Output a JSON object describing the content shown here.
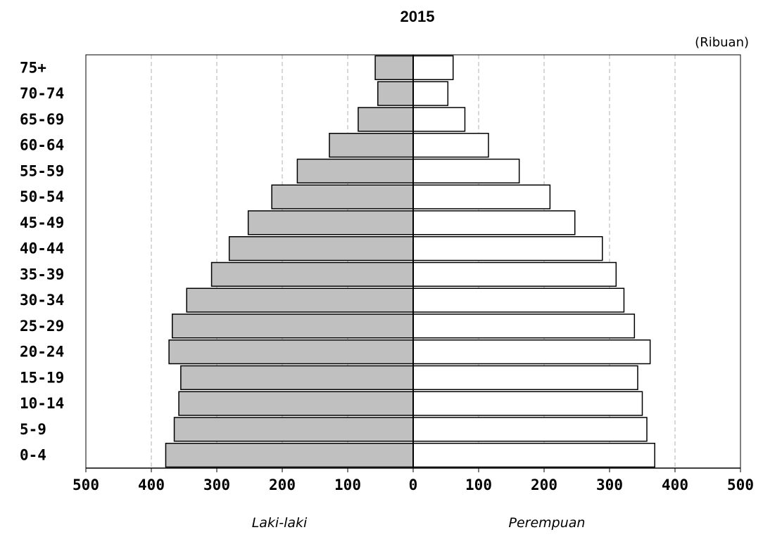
{
  "chart_data": {
    "type": "bar",
    "orientation": "horizontal",
    "title": "2015",
    "unit": "(Ribuan)",
    "categories": [
      "0-4",
      "5-9",
      "10-14",
      "15-19",
      "20-24",
      "25-29",
      "30-34",
      "35-39",
      "40-44",
      "45-49",
      "50-54",
      "55-59",
      "60-64",
      "65-69",
      "70-74",
      "75+"
    ],
    "series": [
      {
        "name": "Laki-laki",
        "side": "left",
        "color": "#c0c0c0",
        "values": [
          378,
          365,
          358,
          355,
          373,
          368,
          346,
          308,
          281,
          252,
          216,
          177,
          128,
          84,
          54,
          58
        ]
      },
      {
        "name": "Perempuan",
        "side": "right",
        "color": "#ffffff",
        "values": [
          369,
          357,
          350,
          343,
          362,
          338,
          322,
          310,
          289,
          247,
          209,
          162,
          115,
          79,
          53,
          61
        ]
      }
    ],
    "x_ticks": [
      "500",
      "400",
      "300",
      "200",
      "100",
      "0",
      "100",
      "200",
      "300",
      "400",
      "500"
    ],
    "xlim": [
      -500,
      500
    ],
    "grid": "vertical dashed",
    "xlabel_left": "Laki-laki",
    "xlabel_right": "Perempuan"
  }
}
